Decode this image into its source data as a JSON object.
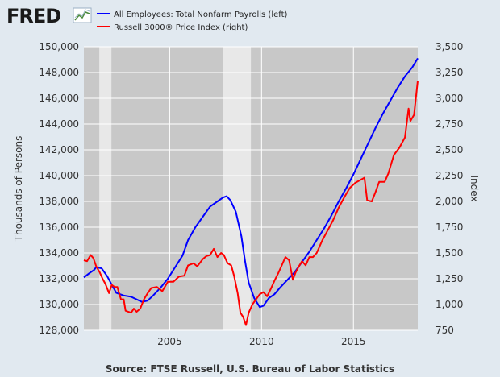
{
  "logo": {
    "text": "FRED"
  },
  "source": "Source: FTSE Russell, U.S. Bureau of Labor Statistics",
  "colors": {
    "background": "#e1e9f0",
    "plot": "#c8c8c8",
    "recession": "#e8e8e8",
    "left": "#0000ff",
    "right": "#ff0000"
  },
  "chart_data": {
    "type": "line",
    "series": [
      {
        "name": "All Employees: Total Nonfarm Payrolls (left)",
        "axis": "left",
        "color": "#0000ff",
        "x": [
          2000.33,
          2000.6,
          2000.9,
          2001.0,
          2001.3,
          2001.6,
          2001.9,
          2002.1,
          2002.5,
          2002.9,
          2003.2,
          2003.5,
          2003.8,
          2004.1,
          2004.5,
          2004.9,
          2005.3,
          2005.7,
          2006.0,
          2006.4,
          2006.8,
          2007.2,
          2007.6,
          2007.9,
          2008.1,
          2008.3,
          2008.6,
          2008.9,
          2009.1,
          2009.3,
          2009.6,
          2009.9,
          2010.1,
          2010.4,
          2010.7,
          2011.0,
          2011.4,
          2011.8,
          2012.2,
          2012.6,
          2013.0,
          2013.4,
          2013.8,
          2014.2,
          2014.6,
          2015.0,
          2015.4,
          2015.8,
          2016.2,
          2016.6,
          2017.0,
          2017.4,
          2017.8,
          2018.2,
          2018.5
        ],
        "values": [
          132100,
          132400,
          132700,
          132900,
          132800,
          132200,
          131400,
          130900,
          130700,
          130600,
          130400,
          130200,
          130300,
          130700,
          131300,
          132000,
          132900,
          133800,
          135000,
          136000,
          136800,
          137600,
          138000,
          138300,
          138400,
          138100,
          137200,
          135300,
          133400,
          131700,
          130500,
          129800,
          129900,
          130500,
          130800,
          131300,
          131900,
          132500,
          133300,
          134100,
          135000,
          135900,
          136900,
          138000,
          139000,
          140100,
          141300,
          142500,
          143700,
          144800,
          145800,
          146800,
          147700,
          148400,
          149100
        ]
      },
      {
        "name": "Russell 3000® Price Index (right)",
        "axis": "right",
        "color": "#ff0000",
        "x": [
          2000.33,
          2000.5,
          2000.7,
          2000.85,
          2001.0,
          2001.2,
          2001.35,
          2001.5,
          2001.7,
          2001.85,
          2002.0,
          2002.15,
          2002.35,
          2002.5,
          2002.6,
          2002.75,
          2002.9,
          2003.05,
          2003.2,
          2003.4,
          2003.6,
          2003.8,
          2004.0,
          2004.3,
          2004.6,
          2004.9,
          2005.2,
          2005.5,
          2005.8,
          2006.0,
          2006.3,
          2006.5,
          2006.8,
          2007.0,
          2007.2,
          2007.4,
          2007.6,
          2007.8,
          2007.95,
          2008.15,
          2008.35,
          2008.5,
          2008.7,
          2008.85,
          2009.0,
          2009.15,
          2009.3,
          2009.5,
          2009.7,
          2009.9,
          2010.1,
          2010.3,
          2010.5,
          2010.7,
          2010.9,
          2011.1,
          2011.3,
          2011.5,
          2011.7,
          2011.85,
          2012.0,
          2012.2,
          2012.4,
          2012.6,
          2012.8,
          2013.0,
          2013.3,
          2013.6,
          2013.9,
          2014.2,
          2014.5,
          2014.8,
          2015.1,
          2015.4,
          2015.6,
          2015.75,
          2016.0,
          2016.2,
          2016.4,
          2016.7,
          2016.9,
          2017.2,
          2017.5,
          2017.8,
          2018.0,
          2018.1,
          2018.3,
          2018.5
        ],
        "values": [
          1430,
          1420,
          1480,
          1450,
          1370,
          1310,
          1250,
          1200,
          1110,
          1190,
          1170,
          1170,
          1050,
          1050,
          940,
          930,
          920,
          960,
          930,
          960,
          1050,
          1110,
          1160,
          1170,
          1130,
          1220,
          1220,
          1270,
          1280,
          1380,
          1400,
          1370,
          1440,
          1470,
          1480,
          1540,
          1460,
          1500,
          1480,
          1400,
          1380,
          1280,
          1110,
          920,
          880,
          800,
          920,
          1000,
          1050,
          1100,
          1120,
          1080,
          1150,
          1230,
          1300,
          1380,
          1460,
          1430,
          1240,
          1310,
          1360,
          1420,
          1380,
          1460,
          1460,
          1500,
          1620,
          1720,
          1820,
          1940,
          2040,
          2130,
          2180,
          2210,
          2230,
          2010,
          2000,
          2090,
          2190,
          2190,
          2270,
          2450,
          2520,
          2620,
          2900,
          2780,
          2840,
          3170
        ]
      }
    ],
    "recessions": [
      [
        2001.17,
        2001.83
      ],
      [
        2007.92,
        2009.42
      ]
    ],
    "x_axis": {
      "range": [
        2000.33,
        2018.5
      ],
      "ticks": [
        2005,
        2010,
        2015
      ],
      "tick_labels": [
        "2005",
        "2010",
        "2015"
      ]
    },
    "y_left": {
      "label": "Thousands of Persons",
      "range": [
        128000,
        150000
      ],
      "ticks": [
        128000,
        130000,
        132000,
        134000,
        136000,
        138000,
        140000,
        142000,
        144000,
        146000,
        148000,
        150000
      ],
      "tick_labels": [
        "128,000",
        "130,000",
        "132,000",
        "134,000",
        "136,000",
        "138,000",
        "140,000",
        "142,000",
        "144,000",
        "146,000",
        "148,000",
        "150,000"
      ]
    },
    "y_right": {
      "label": "Index",
      "range": [
        750,
        3500
      ],
      "ticks": [
        750,
        1000,
        1250,
        1500,
        1750,
        2000,
        2250,
        2500,
        2750,
        3000,
        3250,
        3500
      ],
      "tick_labels": [
        "750",
        "1,000",
        "1,250",
        "1,500",
        "1,750",
        "2,000",
        "2,250",
        "2,500",
        "2,750",
        "3,000",
        "3,250",
        "3,500"
      ]
    },
    "legend": {
      "position": "top-left"
    },
    "grid": true
  }
}
